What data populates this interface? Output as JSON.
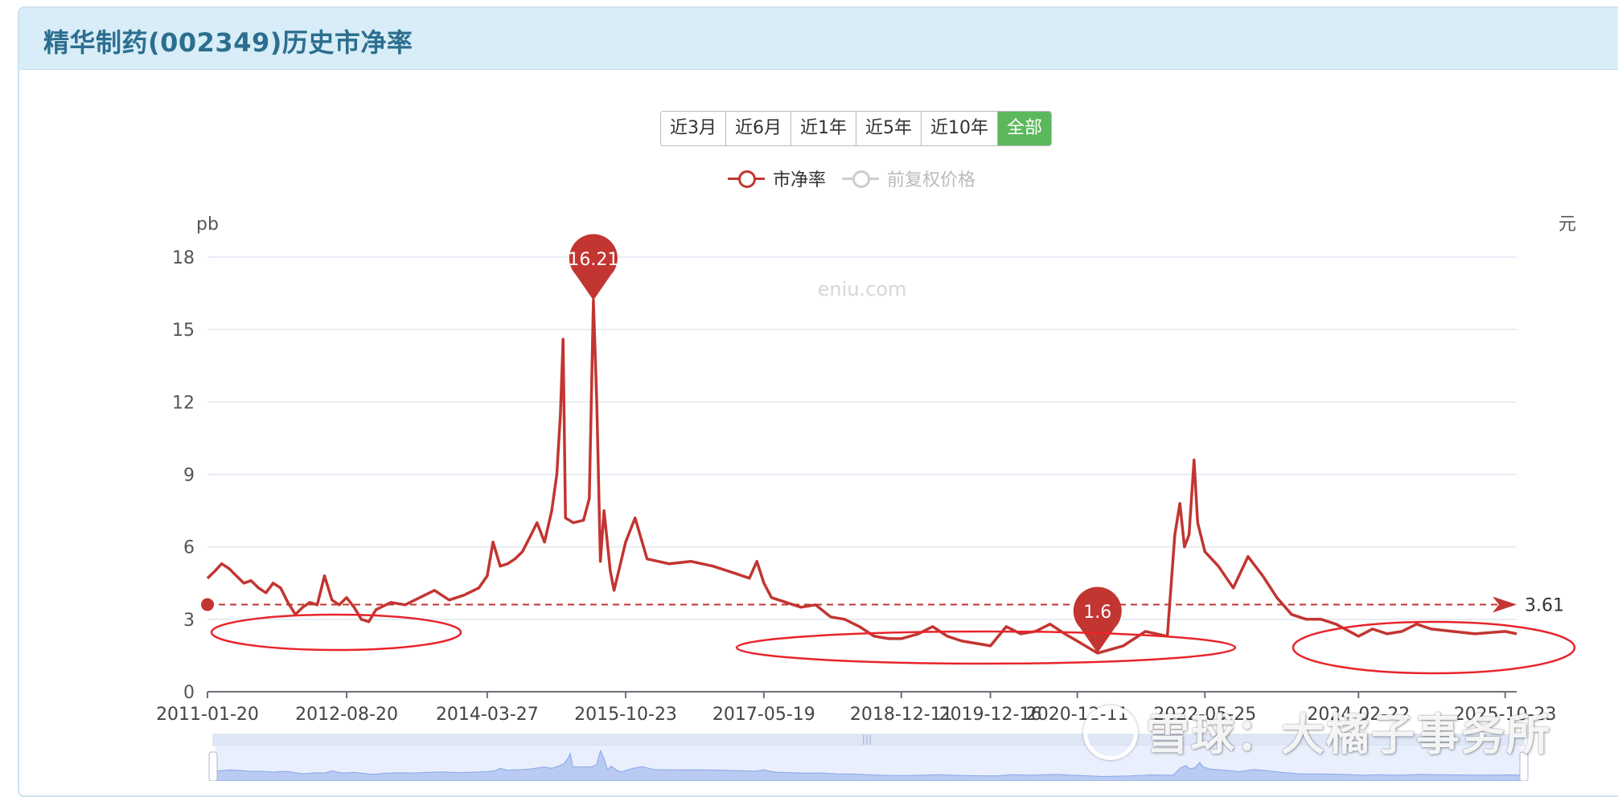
{
  "panel": {
    "title": "精华制药(002349)历史市净率"
  },
  "range_buttons": [
    "近3月",
    "近6月",
    "近1年",
    "近5年",
    "近10年",
    "全部"
  ],
  "active_range_index": 5,
  "legend": [
    {
      "name": "市净率",
      "color": "#c23531",
      "active": true
    },
    {
      "name": "前复权价格",
      "color": "#cccccc",
      "active": false
    }
  ],
  "chart_data": {
    "type": "line",
    "ylabel": "pb",
    "y2label": "元",
    "ylim": [
      0,
      18
    ],
    "yticks": [
      0,
      3,
      6,
      9,
      12,
      15,
      18
    ],
    "x_ticks": [
      "2011-01-20",
      "2012-08-20",
      "2014-03-27",
      "2015-10-23",
      "2017-05-19",
      "2018-12-11",
      "2019-12-16",
      "2020-12-11",
      "2022-05-25",
      "2024-02-22",
      "2025-10-23"
    ],
    "source_text": "eniu.com",
    "average": {
      "value": 3.61,
      "label": "3.61"
    },
    "markers": [
      {
        "label": "16.21",
        "date": "2015-06-11",
        "value": 16.21
      },
      {
        "label": "1.6",
        "date": "2021-03-05",
        "value": 1.6
      }
    ],
    "series": [
      {
        "name": "市净率",
        "color": "#c23531",
        "points": [
          [
            "2011-01-20",
            4.7
          ],
          [
            "2011-02-20",
            5.0
          ],
          [
            "2011-03-20",
            5.3
          ],
          [
            "2011-04-20",
            5.1
          ],
          [
            "2011-05-20",
            4.8
          ],
          [
            "2011-06-20",
            4.5
          ],
          [
            "2011-07-20",
            4.6
          ],
          [
            "2011-08-20",
            4.3
          ],
          [
            "2011-09-20",
            4.1
          ],
          [
            "2011-10-20",
            4.5
          ],
          [
            "2011-11-20",
            4.3
          ],
          [
            "2011-12-20",
            3.7
          ],
          [
            "2012-01-20",
            3.2
          ],
          [
            "2012-02-20",
            3.5
          ],
          [
            "2012-03-20",
            3.7
          ],
          [
            "2012-04-20",
            3.6
          ],
          [
            "2012-05-20",
            4.8
          ],
          [
            "2012-06-20",
            3.8
          ],
          [
            "2012-07-20",
            3.6
          ],
          [
            "2012-08-20",
            3.9
          ],
          [
            "2012-09-20",
            3.5
          ],
          [
            "2012-10-20",
            3.0
          ],
          [
            "2012-11-20",
            2.9
          ],
          [
            "2012-12-20",
            3.4
          ],
          [
            "2013-02-20",
            3.7
          ],
          [
            "2013-04-20",
            3.6
          ],
          [
            "2013-06-20",
            3.9
          ],
          [
            "2013-08-20",
            4.2
          ],
          [
            "2013-10-20",
            3.8
          ],
          [
            "2013-12-20",
            4.0
          ],
          [
            "2014-02-20",
            4.3
          ],
          [
            "2014-03-27",
            4.8
          ],
          [
            "2014-04-20",
            6.2
          ],
          [
            "2014-05-20",
            5.2
          ],
          [
            "2014-06-20",
            5.3
          ],
          [
            "2014-07-20",
            5.5
          ],
          [
            "2014-08-20",
            5.8
          ],
          [
            "2014-09-20",
            6.4
          ],
          [
            "2014-10-20",
            7.0
          ],
          [
            "2014-11-20",
            6.2
          ],
          [
            "2014-12-20",
            7.5
          ],
          [
            "2015-01-10",
            9.0
          ],
          [
            "2015-01-25",
            11.5
          ],
          [
            "2015-02-05",
            14.6
          ],
          [
            "2015-02-15",
            7.2
          ],
          [
            "2015-03-20",
            7.0
          ],
          [
            "2015-05-01",
            7.1
          ],
          [
            "2015-05-25",
            8.0
          ],
          [
            "2015-06-11",
            16.21
          ],
          [
            "2015-06-25",
            12.0
          ],
          [
            "2015-07-10",
            5.4
          ],
          [
            "2015-07-25",
            7.5
          ],
          [
            "2015-08-20",
            5.0
          ],
          [
            "2015-09-05",
            4.2
          ],
          [
            "2015-10-23",
            6.2
          ],
          [
            "2015-12-01",
            7.2
          ],
          [
            "2016-01-20",
            5.5
          ],
          [
            "2016-04-20",
            5.3
          ],
          [
            "2016-07-20",
            5.4
          ],
          [
            "2016-10-20",
            5.2
          ],
          [
            "2017-01-20",
            4.9
          ],
          [
            "2017-03-20",
            4.7
          ],
          [
            "2017-04-20",
            5.4
          ],
          [
            "2017-05-19",
            4.5
          ],
          [
            "2017-06-20",
            3.9
          ],
          [
            "2017-08-20",
            3.7
          ],
          [
            "2017-10-20",
            3.5
          ],
          [
            "2017-12-20",
            3.6
          ],
          [
            "2018-02-20",
            3.1
          ],
          [
            "2018-04-20",
            3.0
          ],
          [
            "2018-06-20",
            2.7
          ],
          [
            "2018-08-20",
            2.3
          ],
          [
            "2018-10-20",
            2.2
          ],
          [
            "2018-12-11",
            2.2
          ],
          [
            "2019-02-20",
            2.4
          ],
          [
            "2019-04-20",
            2.7
          ],
          [
            "2019-06-20",
            2.3
          ],
          [
            "2019-08-20",
            2.1
          ],
          [
            "2019-10-20",
            2.0
          ],
          [
            "2019-12-16",
            1.9
          ],
          [
            "2020-02-20",
            2.7
          ],
          [
            "2020-04-20",
            2.4
          ],
          [
            "2020-06-20",
            2.5
          ],
          [
            "2020-08-20",
            2.8
          ],
          [
            "2020-10-20",
            2.4
          ],
          [
            "2020-12-11",
            2.1
          ],
          [
            "2021-03-05",
            1.6
          ],
          [
            "2021-06-20",
            1.9
          ],
          [
            "2021-09-20",
            2.5
          ],
          [
            "2021-12-20",
            2.3
          ],
          [
            "2022-01-20",
            6.5
          ],
          [
            "2022-02-10",
            7.8
          ],
          [
            "2022-03-01",
            6.0
          ],
          [
            "2022-03-20",
            6.5
          ],
          [
            "2022-04-10",
            9.6
          ],
          [
            "2022-04-25",
            7.0
          ],
          [
            "2022-05-25",
            5.8
          ],
          [
            "2022-07-20",
            5.2
          ],
          [
            "2022-09-20",
            4.3
          ],
          [
            "2022-11-20",
            5.6
          ],
          [
            "2023-01-20",
            4.8
          ],
          [
            "2023-03-20",
            3.9
          ],
          [
            "2023-05-20",
            3.2
          ],
          [
            "2023-07-20",
            3.0
          ],
          [
            "2023-09-20",
            3.0
          ],
          [
            "2023-11-20",
            2.8
          ],
          [
            "2024-02-22",
            2.3
          ],
          [
            "2024-04-20",
            2.6
          ],
          [
            "2024-06-20",
            2.4
          ],
          [
            "2024-08-20",
            2.5
          ],
          [
            "2024-10-20",
            2.8
          ],
          [
            "2024-12-20",
            2.6
          ],
          [
            "2025-03-20",
            2.5
          ],
          [
            "2025-06-20",
            2.4
          ],
          [
            "2025-10-23",
            2.5
          ],
          [
            "2025-12-10",
            2.4
          ]
        ]
      }
    ]
  },
  "watermark": {
    "text": "雪球：大橘子事务所"
  }
}
